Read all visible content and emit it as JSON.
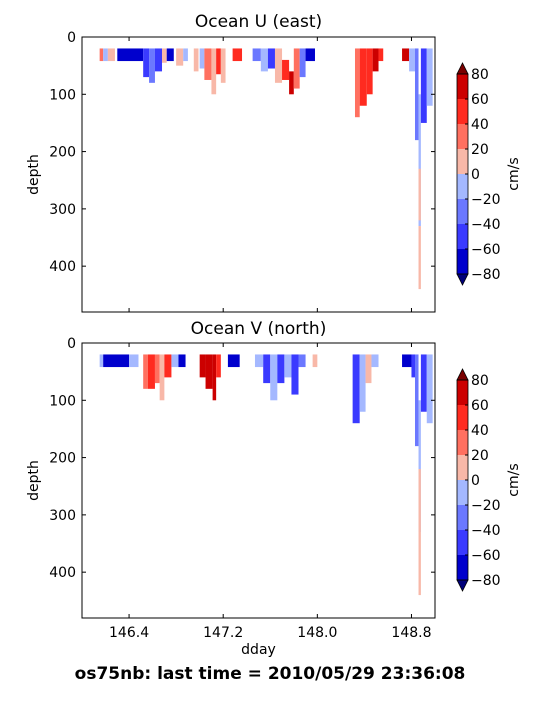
{
  "footer": "os75nb: last time = 2010/05/29 23:36:08",
  "chart_data": {
    "type": "heatmap",
    "x_label": "dday",
    "y_label": "depth",
    "colorbar_label": "cm/s",
    "xlim": [
      146.0,
      149.0
    ],
    "ylim": [
      0,
      480
    ],
    "x_ticks": [
      146.4,
      147.2,
      148.0,
      148.8
    ],
    "x_tick_labels": [
      "146.4",
      "147.2",
      "148.0",
      "148.8"
    ],
    "y_ticks": [
      0,
      100,
      200,
      300,
      400
    ],
    "y_tick_labels": [
      "0",
      "100",
      "200",
      "300",
      "400"
    ],
    "colorbar_ticks": [
      80,
      60,
      40,
      20,
      0,
      -20,
      -40,
      -60,
      -80
    ],
    "colorbar_tick_labels": [
      "80",
      "60",
      "40",
      "20",
      "0",
      "−20",
      "−40",
      "−60",
      "−80"
    ],
    "colorbar_levels": [
      -80,
      -60,
      -40,
      -20,
      0,
      20,
      40,
      60,
      80
    ],
    "colorbar_colors": [
      "#0000cd",
      "#3a3aff",
      "#6b78ff",
      "#a4b8ff",
      "#f8b8a8",
      "#ff7060",
      "#ff2b20",
      "#cc0000"
    ],
    "panels": [
      {
        "title": "Ocean U (east)",
        "segments": [
          {
            "x0": 146.15,
            "x1": 146.18,
            "top": 20,
            "bottom": 42,
            "value": 30
          },
          {
            "x0": 146.18,
            "x1": 146.22,
            "top": 20,
            "bottom": 42,
            "value": -10
          },
          {
            "x0": 146.22,
            "x1": 146.28,
            "top": 20,
            "bottom": 42,
            "value": 10
          },
          {
            "x0": 146.3,
            "x1": 146.52,
            "top": 20,
            "bottom": 42,
            "value": -70
          },
          {
            "x0": 146.52,
            "x1": 146.57,
            "top": 20,
            "bottom": 70,
            "value": -50
          },
          {
            "x0": 146.57,
            "x1": 146.62,
            "top": 20,
            "bottom": 80,
            "value": -30
          },
          {
            "x0": 146.62,
            "x1": 146.68,
            "top": 20,
            "bottom": 60,
            "value": -50
          },
          {
            "x0": 146.68,
            "x1": 146.72,
            "top": 20,
            "bottom": 45,
            "value": 10
          },
          {
            "x0": 146.72,
            "x1": 146.78,
            "top": 20,
            "bottom": 42,
            "value": -70
          },
          {
            "x0": 146.8,
            "x1": 146.86,
            "top": 20,
            "bottom": 50,
            "value": 10
          },
          {
            "x0": 146.86,
            "x1": 146.9,
            "top": 20,
            "bottom": 42,
            "value": -10
          },
          {
            "x0": 146.95,
            "x1": 146.99,
            "top": 20,
            "bottom": 60,
            "value": 10
          },
          {
            "x0": 147.0,
            "x1": 147.04,
            "top": 20,
            "bottom": 55,
            "value": -10
          },
          {
            "x0": 147.04,
            "x1": 147.1,
            "top": 20,
            "bottom": 75,
            "value": 30
          },
          {
            "x0": 147.1,
            "x1": 147.14,
            "top": 20,
            "bottom": 100,
            "value": 10
          },
          {
            "x0": 147.14,
            "x1": 147.18,
            "top": 20,
            "bottom": 65,
            "value": 50
          },
          {
            "x0": 147.18,
            "x1": 147.22,
            "top": 20,
            "bottom": 80,
            "value": 10
          },
          {
            "x0": 147.28,
            "x1": 147.36,
            "top": 20,
            "bottom": 42,
            "value": 50
          },
          {
            "x0": 147.45,
            "x1": 147.52,
            "top": 20,
            "bottom": 42,
            "value": -30
          },
          {
            "x0": 147.52,
            "x1": 147.58,
            "top": 20,
            "bottom": 60,
            "value": -10
          },
          {
            "x0": 147.58,
            "x1": 147.64,
            "top": 20,
            "bottom": 55,
            "value": -50
          },
          {
            "x0": 147.64,
            "x1": 147.7,
            "top": 20,
            "bottom": 80,
            "value": 10
          },
          {
            "x0": 147.7,
            "x1": 147.76,
            "top": 40,
            "bottom": 75,
            "value": 50
          },
          {
            "x0": 147.76,
            "x1": 147.8,
            "top": 60,
            "bottom": 100,
            "value": 70
          },
          {
            "x0": 147.8,
            "x1": 147.85,
            "top": 20,
            "bottom": 90,
            "value": 30
          },
          {
            "x0": 147.85,
            "x1": 147.9,
            "top": 20,
            "bottom": 70,
            "value": -30
          },
          {
            "x0": 147.9,
            "x1": 147.98,
            "top": 20,
            "bottom": 42,
            "value": -70
          },
          {
            "x0": 148.32,
            "x1": 148.36,
            "top": 20,
            "bottom": 140,
            "value": 30
          },
          {
            "x0": 148.36,
            "x1": 148.42,
            "top": 20,
            "bottom": 120,
            "value": 50
          },
          {
            "x0": 148.42,
            "x1": 148.47,
            "top": 20,
            "bottom": 100,
            "value": 50
          },
          {
            "x0": 148.47,
            "x1": 148.52,
            "top": 20,
            "bottom": 60,
            "value": 70
          },
          {
            "x0": 148.52,
            "x1": 148.56,
            "top": 20,
            "bottom": 42,
            "value": 50
          },
          {
            "x0": 148.72,
            "x1": 148.78,
            "top": 20,
            "bottom": 42,
            "value": 70
          },
          {
            "x0": 148.78,
            "x1": 148.83,
            "top": 20,
            "bottom": 60,
            "value": -10
          },
          {
            "x0": 148.83,
            "x1": 148.86,
            "top": 20,
            "bottom": 180,
            "value": -30
          },
          {
            "x0": 148.86,
            "x1": 148.88,
            "top": 100,
            "bottom": 330,
            "value": -10
          },
          {
            "x0": 148.86,
            "x1": 148.88,
            "top": 230,
            "bottom": 320,
            "value": 10
          },
          {
            "x0": 148.86,
            "x1": 148.88,
            "top": 330,
            "bottom": 440,
            "value": 10
          },
          {
            "x0": 148.88,
            "x1": 148.93,
            "top": 20,
            "bottom": 150,
            "value": -50
          },
          {
            "x0": 148.93,
            "x1": 148.98,
            "top": 20,
            "bottom": 120,
            "value": -10
          }
        ]
      },
      {
        "title": "Ocean V (north)",
        "segments": [
          {
            "x0": 146.15,
            "x1": 146.18,
            "top": 20,
            "bottom": 42,
            "value": -10
          },
          {
            "x0": 146.18,
            "x1": 146.4,
            "top": 20,
            "bottom": 42,
            "value": -70
          },
          {
            "x0": 146.4,
            "x1": 146.48,
            "top": 20,
            "bottom": 42,
            "value": -10
          },
          {
            "x0": 146.52,
            "x1": 146.56,
            "top": 20,
            "bottom": 80,
            "value": 30
          },
          {
            "x0": 146.56,
            "x1": 146.62,
            "top": 20,
            "bottom": 80,
            "value": 50
          },
          {
            "x0": 146.62,
            "x1": 146.66,
            "top": 20,
            "bottom": 70,
            "value": 30
          },
          {
            "x0": 146.66,
            "x1": 146.7,
            "top": 20,
            "bottom": 100,
            "value": 10
          },
          {
            "x0": 146.7,
            "x1": 146.76,
            "top": 20,
            "bottom": 60,
            "value": 50
          },
          {
            "x0": 146.76,
            "x1": 146.82,
            "top": 20,
            "bottom": 42,
            "value": -10
          },
          {
            "x0": 146.82,
            "x1": 146.88,
            "top": 20,
            "bottom": 42,
            "value": -70
          },
          {
            "x0": 147.0,
            "x1": 147.05,
            "top": 20,
            "bottom": 60,
            "value": 70
          },
          {
            "x0": 147.05,
            "x1": 147.11,
            "top": 20,
            "bottom": 80,
            "value": 70
          },
          {
            "x0": 147.11,
            "x1": 147.14,
            "top": 20,
            "bottom": 100,
            "value": 70
          },
          {
            "x0": 147.14,
            "x1": 147.18,
            "top": 20,
            "bottom": 60,
            "value": 50
          },
          {
            "x0": 147.24,
            "x1": 147.34,
            "top": 20,
            "bottom": 42,
            "value": -70
          },
          {
            "x0": 147.47,
            "x1": 147.54,
            "top": 20,
            "bottom": 42,
            "value": -10
          },
          {
            "x0": 147.54,
            "x1": 147.6,
            "top": 20,
            "bottom": 70,
            "value": -50
          },
          {
            "x0": 147.6,
            "x1": 147.66,
            "top": 20,
            "bottom": 100,
            "value": -10
          },
          {
            "x0": 147.66,
            "x1": 147.72,
            "top": 20,
            "bottom": 70,
            "value": -50
          },
          {
            "x0": 147.72,
            "x1": 147.78,
            "top": 20,
            "bottom": 60,
            "value": -10
          },
          {
            "x0": 147.78,
            "x1": 147.84,
            "top": 20,
            "bottom": 90,
            "value": -50
          },
          {
            "x0": 147.84,
            "x1": 147.9,
            "top": 20,
            "bottom": 42,
            "value": -30
          },
          {
            "x0": 147.96,
            "x1": 148.0,
            "top": 20,
            "bottom": 42,
            "value": 10
          },
          {
            "x0": 148.3,
            "x1": 148.36,
            "top": 20,
            "bottom": 140,
            "value": -50
          },
          {
            "x0": 148.36,
            "x1": 148.41,
            "top": 20,
            "bottom": 120,
            "value": -10
          },
          {
            "x0": 148.41,
            "x1": 148.46,
            "top": 20,
            "bottom": 70,
            "value": 10
          },
          {
            "x0": 148.46,
            "x1": 148.52,
            "top": 20,
            "bottom": 42,
            "value": -10
          },
          {
            "x0": 148.72,
            "x1": 148.8,
            "top": 20,
            "bottom": 42,
            "value": -70
          },
          {
            "x0": 148.8,
            "x1": 148.83,
            "top": 20,
            "bottom": 60,
            "value": -50
          },
          {
            "x0": 148.83,
            "x1": 148.86,
            "top": 20,
            "bottom": 180,
            "value": -30
          },
          {
            "x0": 148.86,
            "x1": 148.88,
            "top": 100,
            "bottom": 330,
            "value": -10
          },
          {
            "x0": 148.86,
            "x1": 148.88,
            "top": 220,
            "bottom": 440,
            "value": 10
          },
          {
            "x0": 148.88,
            "x1": 148.93,
            "top": 20,
            "bottom": 120,
            "value": -50
          },
          {
            "x0": 148.93,
            "x1": 148.98,
            "top": 20,
            "bottom": 140,
            "value": -10
          }
        ]
      }
    ]
  }
}
